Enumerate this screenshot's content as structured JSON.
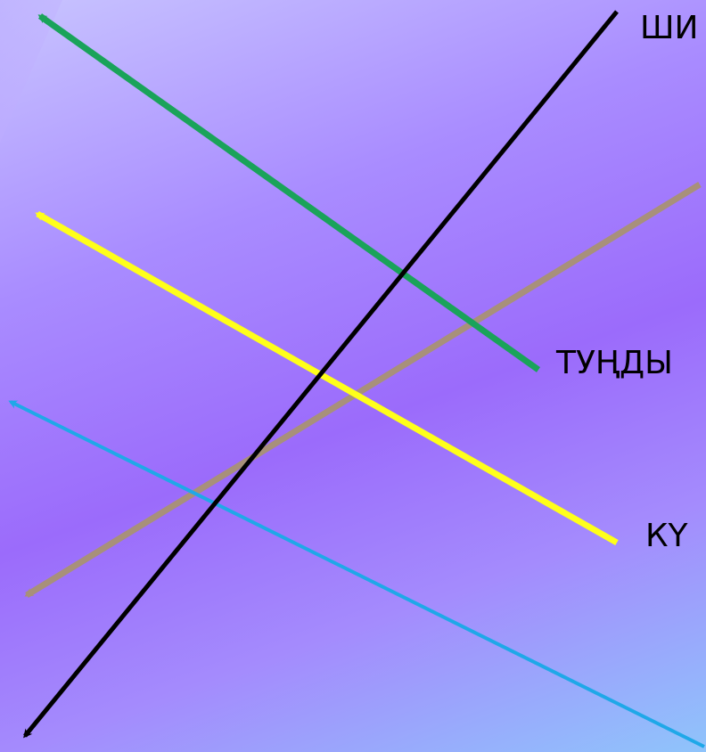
{
  "background": {
    "colors": [
      "#c8c4ff",
      "#a98cff",
      "#9b6bfb",
      "#a48bfd",
      "#8fc4fb"
    ]
  },
  "labels": {
    "top": "ШИ",
    "middle": "ТУҢДЫ",
    "bottom": "КҮ"
  },
  "lines": [
    {
      "name": "black-line",
      "color": "#000000"
    },
    {
      "name": "green-arrow",
      "color": "#1aa35a"
    },
    {
      "name": "yellow-arrow",
      "color": "#ffff1a"
    },
    {
      "name": "tan-arrow",
      "color": "#a8907a"
    },
    {
      "name": "blue-arrow",
      "color": "#1fa8e8"
    }
  ]
}
